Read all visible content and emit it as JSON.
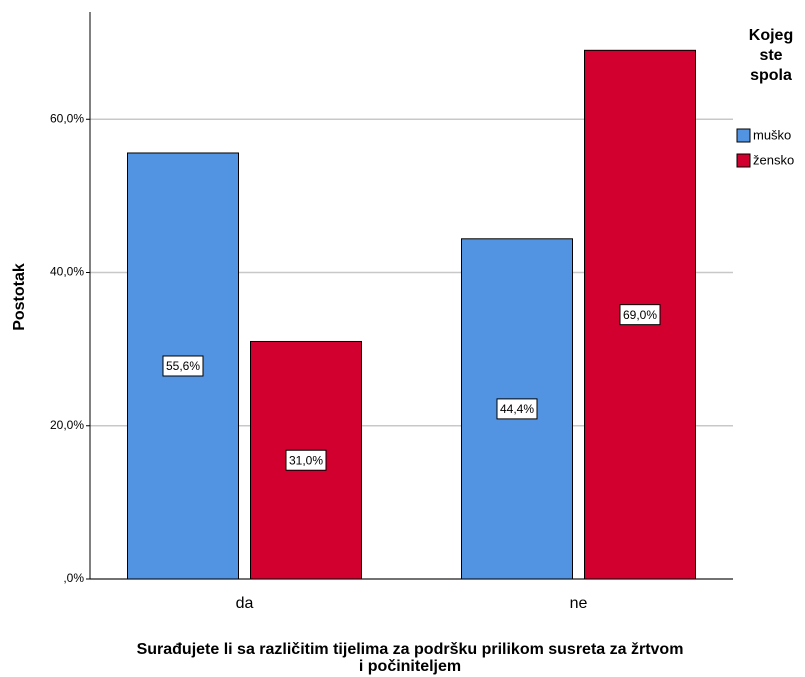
{
  "chart_data": {
    "type": "bar",
    "categories": [
      "da",
      "ne"
    ],
    "series": [
      {
        "name": "muško",
        "color": "#5294e2",
        "values": [
          55.6,
          44.4
        ],
        "value_labels": [
          "55,6%",
          "44,4%"
        ]
      },
      {
        "name": "žensko",
        "color": "#d2002f",
        "values": [
          31.0,
          69.0
        ],
        "value_labels": [
          "31,0%",
          "69,0%"
        ]
      }
    ],
    "ylabel": "Postotak",
    "xlabel": [
      "Surađujete li sa različitim tijelima za podršku prilikom susreta za žrtvom",
      "i počiniteljem"
    ],
    "legend_title": [
      "Kojeg",
      "ste",
      "spola"
    ],
    "legend": "right",
    "ylim": [
      0,
      74
    ],
    "yticks": [
      {
        "value": 0,
        "label": ",0%"
      },
      {
        "value": 20,
        "label": "20,0%"
      },
      {
        "value": 40,
        "label": "40,0%"
      },
      {
        "value": 60,
        "label": "60,0%"
      }
    ],
    "grid": true
  }
}
